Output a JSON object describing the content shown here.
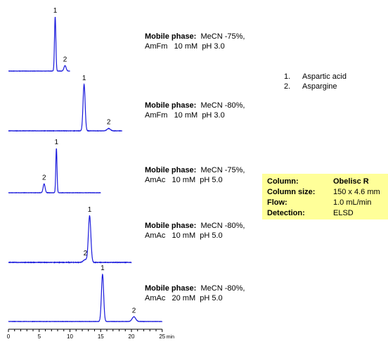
{
  "chart_data": [
    {
      "type": "line",
      "peak_labels": [
        "1",
        "2"
      ],
      "peaks": [
        {
          "label": "1",
          "x": 7.6,
          "height": 1.0
        },
        {
          "label": "2",
          "x": 9.2,
          "height": 0.1
        }
      ],
      "x_range": [
        0,
        10
      ]
    },
    {
      "type": "line",
      "peak_labels": [
        "1",
        "2"
      ],
      "peaks": [
        {
          "label": "1",
          "x": 12.3,
          "height": 1.0
        },
        {
          "label": "2",
          "x": 16.3,
          "height": 0.05
        }
      ],
      "x_range": [
        0,
        18.5
      ]
    },
    {
      "type": "line",
      "peak_labels": [
        "2",
        "1"
      ],
      "peaks": [
        {
          "label": "2",
          "x": 5.8,
          "height": 0.2
        },
        {
          "label": "1",
          "x": 7.8,
          "height": 1.0
        }
      ],
      "x_range": [
        0,
        15
      ]
    },
    {
      "type": "line",
      "peak_labels": [
        "2",
        "1"
      ],
      "peaks": [
        {
          "label": "2",
          "x": 12.5,
          "height": 0.06
        },
        {
          "label": "1",
          "x": 13.2,
          "height": 1.0
        }
      ],
      "x_range": [
        0,
        20
      ]
    },
    {
      "type": "line",
      "peak_labels": [
        "1",
        "2"
      ],
      "peaks": [
        {
          "label": "1",
          "x": 15.3,
          "height": 1.0
        },
        {
          "label": "2",
          "x": 20.4,
          "height": 0.1
        }
      ],
      "x_range": [
        0,
        25
      ],
      "xticks": [
        "0",
        "5",
        "10",
        "15",
        "20",
        "25"
      ],
      "xlabel": "min"
    }
  ],
  "conditions": [
    {
      "label": "Mobile phase:",
      "organic": "MeCN -75%,",
      "buffer": "AmFm",
      "conc": "10 mM",
      "ph": "pH 3.0"
    },
    {
      "label": "Mobile phase:",
      "organic": "MeCN -80%,",
      "buffer": "AmFm",
      "conc": "10 mM",
      "ph": "pH 3.0"
    },
    {
      "label": "Mobile phase:",
      "organic": "MeCN -75%,",
      "buffer": "AmAc",
      "conc": "10 mM",
      "ph": "pH 5.0"
    },
    {
      "label": "Mobile phase:",
      "organic": "MeCN -80%,",
      "buffer": "AmAc",
      "conc": "10 mM",
      "ph": "pH 5.0"
    },
    {
      "label": "Mobile phase:",
      "organic": "MeCN -80%,",
      "buffer": "AmAc",
      "conc": "20 mM",
      "ph": "pH 5.0"
    }
  ],
  "analytes": [
    {
      "num": "1.",
      "name": "Aspartic acid"
    },
    {
      "num": "2.",
      "name": "Aspargine"
    }
  ],
  "method": {
    "column_label": "Column:",
    "column_value": "Obelisc R",
    "size_label": "Column size:",
    "size_value": "150 x 4.6 mm",
    "flow_label": "Flow:",
    "flow_value": "1.0 mL/min",
    "detection_label": "Detection:",
    "detection_value": "ELSD"
  },
  "colors": {
    "trace": "#1a1adc",
    "infobox": "#ffff99"
  }
}
